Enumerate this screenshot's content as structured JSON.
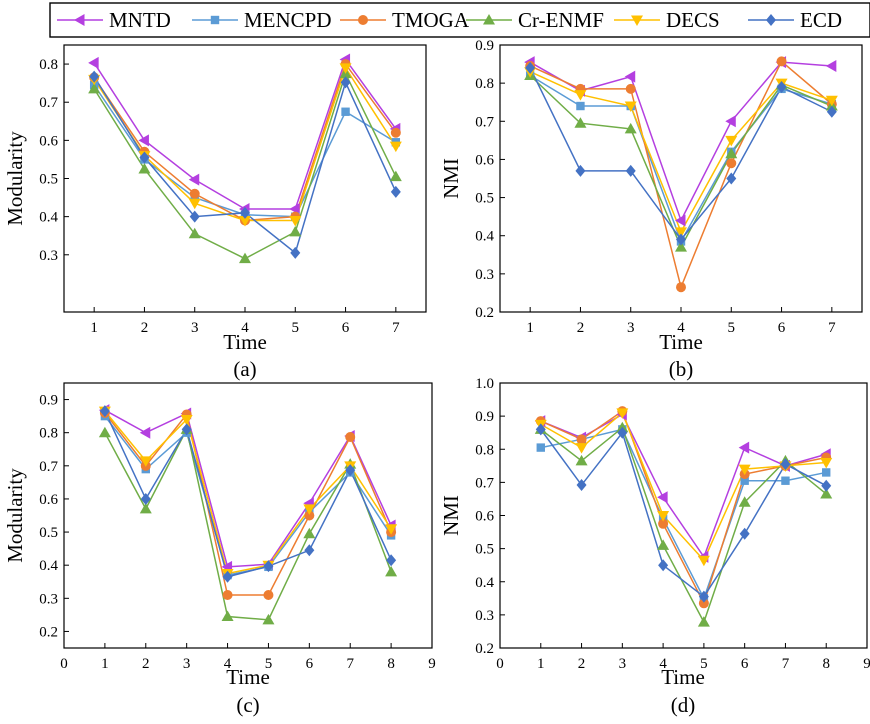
{
  "legend": {
    "entries": [
      {
        "name": "MNTD",
        "color": "#B43FE0",
        "marker": "triangle-left"
      },
      {
        "name": "MENCPD",
        "color": "#5B9BD5",
        "marker": "square"
      },
      {
        "name": "TMOGA",
        "color": "#ED7D31",
        "marker": "circle"
      },
      {
        "name": "Cr-ENMF",
        "color": "#70AD47",
        "marker": "triangle-up"
      },
      {
        "name": "DECS",
        "color": "#FFC000",
        "marker": "triangle-down"
      },
      {
        "name": "ECD",
        "color": "#4472C4",
        "marker": "diamond"
      }
    ]
  },
  "chart_data": [
    {
      "type": "line",
      "panel_label": "(a)",
      "xlabel": "Time",
      "ylabel": "Modularity",
      "xlim": [
        0.4,
        7.6
      ],
      "ylim": [
        0.15,
        0.85
      ],
      "xticks": [
        1,
        2,
        3,
        4,
        5,
        6,
        7
      ],
      "yticks": [
        0.3,
        0.4,
        0.5,
        0.6,
        0.7,
        0.8
      ],
      "ytick_labels": [
        "0.3",
        "0.4",
        "0.5",
        "0.6",
        "0.7",
        "0.8"
      ],
      "x": [
        1,
        2,
        3,
        4,
        5,
        6,
        7
      ],
      "series": [
        {
          "name": "MNTD",
          "values": [
            0.803,
            0.6,
            0.497,
            0.42,
            0.42,
            0.812,
            0.63
          ]
        },
        {
          "name": "MENCPD",
          "values": [
            0.745,
            0.55,
            0.45,
            0.405,
            0.4,
            0.675,
            0.595
          ]
        },
        {
          "name": "TMOGA",
          "values": [
            0.765,
            0.57,
            0.46,
            0.39,
            0.4,
            0.8,
            0.62
          ]
        },
        {
          "name": "Cr-ENMF",
          "values": [
            0.735,
            0.525,
            0.355,
            0.29,
            0.36,
            0.775,
            0.505
          ]
        },
        {
          "name": "DECS",
          "values": [
            0.76,
            0.56,
            0.435,
            0.39,
            0.39,
            0.79,
            0.585
          ]
        },
        {
          "name": "ECD",
          "values": [
            0.767,
            0.555,
            0.4,
            0.41,
            0.305,
            0.752,
            0.465
          ]
        }
      ]
    },
    {
      "type": "line",
      "panel_label": "(b)",
      "xlabel": "Time",
      "ylabel": "NMI",
      "xlim": [
        0.4,
        7.6
      ],
      "ylim": [
        0.2,
        0.9
      ],
      "xticks": [
        1,
        2,
        3,
        4,
        5,
        6,
        7
      ],
      "yticks": [
        0.2,
        0.3,
        0.4,
        0.5,
        0.6,
        0.7,
        0.8,
        0.9
      ],
      "ytick_labels": [
        "0.2",
        "0.3",
        "0.4",
        "0.5",
        "0.6",
        "0.7",
        "0.8",
        "0.9"
      ],
      "x": [
        1,
        2,
        3,
        4,
        5,
        6,
        7
      ],
      "series": [
        {
          "name": "MNTD",
          "values": [
            0.855,
            0.78,
            0.817,
            0.44,
            0.7,
            0.855,
            0.845
          ]
        },
        {
          "name": "MENCPD",
          "values": [
            0.82,
            0.74,
            0.74,
            0.385,
            0.62,
            0.785,
            0.745
          ]
        },
        {
          "name": "TMOGA",
          "values": [
            0.845,
            0.785,
            0.785,
            0.265,
            0.59,
            0.857,
            0.745
          ]
        },
        {
          "name": "Cr-ENMF",
          "values": [
            0.82,
            0.695,
            0.68,
            0.37,
            0.615,
            0.795,
            0.74
          ]
        },
        {
          "name": "DECS",
          "values": [
            0.83,
            0.77,
            0.74,
            0.41,
            0.65,
            0.8,
            0.755
          ]
        },
        {
          "name": "ECD",
          "values": [
            0.84,
            0.57,
            0.57,
            0.39,
            0.55,
            0.79,
            0.725
          ]
        }
      ]
    },
    {
      "type": "line",
      "panel_label": "(c)",
      "xlabel": "Time",
      "ylabel": "Modularity",
      "xlim": [
        0,
        9
      ],
      "ylim": [
        0.15,
        0.95
      ],
      "xticks": [
        0,
        1,
        2,
        3,
        4,
        5,
        6,
        7,
        8,
        9
      ],
      "yticks": [
        0.2,
        0.3,
        0.4,
        0.5,
        0.6,
        0.7,
        0.8,
        0.9
      ],
      "ytick_labels": [
        "0.2",
        "0.3",
        "0.4",
        "0.5",
        "0.6",
        "0.7",
        "0.8",
        "0.9"
      ],
      "x": [
        1,
        2,
        3,
        4,
        5,
        6,
        7,
        8
      ],
      "series": [
        {
          "name": "MNTD",
          "values": [
            0.868,
            0.8,
            0.858,
            0.395,
            0.403,
            0.587,
            0.79,
            0.52
          ]
        },
        {
          "name": "MENCPD",
          "values": [
            0.85,
            0.69,
            0.8,
            0.37,
            0.395,
            0.56,
            0.68,
            0.49
          ]
        },
        {
          "name": "TMOGA",
          "values": [
            0.86,
            0.7,
            0.855,
            0.31,
            0.31,
            0.55,
            0.787,
            0.5
          ]
        },
        {
          "name": "Cr-ENMF",
          "values": [
            0.8,
            0.57,
            0.81,
            0.245,
            0.235,
            0.495,
            0.705,
            0.38
          ]
        },
        {
          "name": "DECS",
          "values": [
            0.865,
            0.715,
            0.84,
            0.375,
            0.4,
            0.57,
            0.7,
            0.51
          ]
        },
        {
          "name": "ECD",
          "values": [
            0.865,
            0.6,
            0.81,
            0.365,
            0.397,
            0.445,
            0.687,
            0.415
          ]
        }
      ]
    },
    {
      "type": "line",
      "panel_label": "(d)",
      "xlabel": "Time",
      "ylabel": "NMI",
      "xlim": [
        0,
        9
      ],
      "ylim": [
        0.2,
        1.0
      ],
      "xticks": [
        0,
        1,
        2,
        3,
        4,
        5,
        6,
        7,
        8,
        9
      ],
      "yticks": [
        0.2,
        0.3,
        0.4,
        0.5,
        0.6,
        0.7,
        0.8,
        0.9,
        1.0
      ],
      "ytick_labels": [
        "0.2",
        "0.3",
        "0.4",
        "0.5",
        "0.6",
        "0.7",
        "0.8",
        "0.9",
        "1.0"
      ],
      "x": [
        1,
        2,
        3,
        4,
        5,
        6,
        7,
        8
      ],
      "series": [
        {
          "name": "MNTD",
          "values": [
            0.885,
            0.835,
            0.905,
            0.655,
            0.475,
            0.805,
            0.75,
            0.785
          ]
        },
        {
          "name": "MENCPD",
          "values": [
            0.805,
            0.83,
            0.86,
            0.59,
            0.35,
            0.705,
            0.705,
            0.73
          ]
        },
        {
          "name": "TMOGA",
          "values": [
            0.885,
            0.83,
            0.915,
            0.575,
            0.335,
            0.725,
            0.75,
            0.775
          ]
        },
        {
          "name": "Cr-ENMF",
          "values": [
            0.86,
            0.765,
            0.865,
            0.51,
            0.278,
            0.64,
            0.765,
            0.665
          ]
        },
        {
          "name": "DECS",
          "values": [
            0.875,
            0.805,
            0.91,
            0.6,
            0.465,
            0.74,
            0.75,
            0.76
          ]
        },
        {
          "name": "ECD",
          "values": [
            0.86,
            0.692,
            0.85,
            0.45,
            0.355,
            0.545,
            0.755,
            0.69
          ]
        }
      ]
    }
  ]
}
